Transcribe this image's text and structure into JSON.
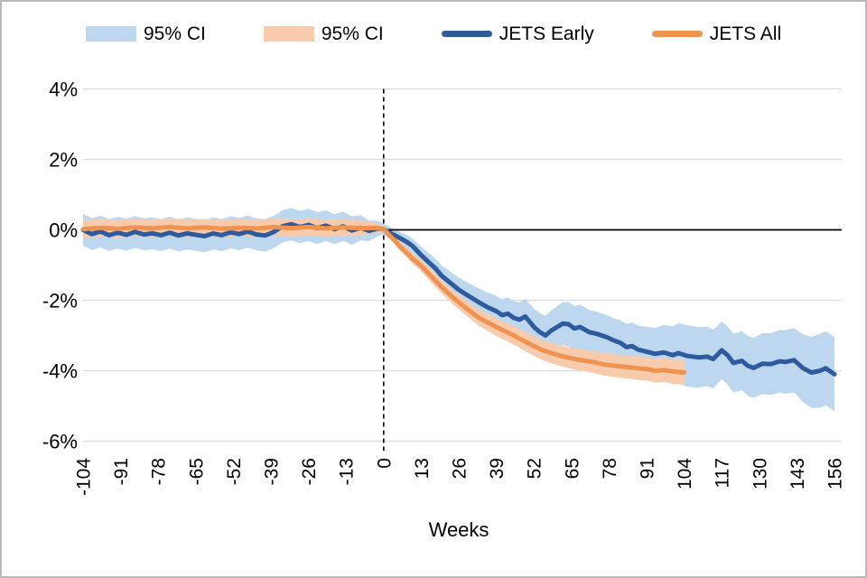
{
  "legend": {
    "items": [
      {
        "label": "95% CI",
        "type": "band",
        "color": "#BDD7EE"
      },
      {
        "label": "95% CI",
        "type": "band",
        "color": "#F8CBAD"
      },
      {
        "label": "JETS Early",
        "type": "line",
        "color": "#2E5B9E"
      },
      {
        "label": "JETS All",
        "type": "line",
        "color": "#EF9450"
      }
    ]
  },
  "chart_data": {
    "type": "line",
    "title": "",
    "xlabel": "Weeks",
    "ylabel": "",
    "xlim": [
      -104,
      156
    ],
    "ylim": [
      -6,
      4
    ],
    "grid": true,
    "x_tick_values": [
      -104,
      -91,
      -78,
      -65,
      -52,
      -39,
      -26,
      -13,
      0,
      13,
      26,
      39,
      52,
      65,
      78,
      91,
      104,
      117,
      130,
      143,
      156
    ],
    "y_tick_values": [
      4,
      2,
      0,
      -2,
      -4,
      -6
    ],
    "y_tick_labels": [
      "4%",
      "2%",
      "0%",
      "-2%",
      "-4%",
      "-6%"
    ],
    "vertical_dashed_line_week": 0,
    "zero_line_from_week": 0,
    "gridline_color": "#D9D9D9",
    "series": [
      {
        "name": "JETS Early",
        "color": "#2E5B9E",
        "ci_name": "95% CI",
        "ci_color": "#BDD7EE",
        "points": [
          [
            -104,
            0.0
          ],
          [
            -101,
            -0.12
          ],
          [
            -98,
            -0.05
          ],
          [
            -95,
            -0.15
          ],
          [
            -92,
            -0.08
          ],
          [
            -89,
            -0.14
          ],
          [
            -86,
            -0.06
          ],
          [
            -83,
            -0.13
          ],
          [
            -80,
            -0.1
          ],
          [
            -77,
            -0.15
          ],
          [
            -74,
            -0.08
          ],
          [
            -71,
            -0.16
          ],
          [
            -68,
            -0.1
          ],
          [
            -65,
            -0.14
          ],
          [
            -62,
            -0.18
          ],
          [
            -59,
            -0.1
          ],
          [
            -56,
            -0.15
          ],
          [
            -53,
            -0.07
          ],
          [
            -50,
            -0.12
          ],
          [
            -47,
            -0.05
          ],
          [
            -44,
            -0.13
          ],
          [
            -41,
            -0.16
          ],
          [
            -38,
            -0.06
          ],
          [
            -35,
            0.1
          ],
          [
            -32,
            0.16
          ],
          [
            -29,
            0.08
          ],
          [
            -26,
            0.14
          ],
          [
            -23,
            0.05
          ],
          [
            -20,
            0.12
          ],
          [
            -17,
            0.02
          ],
          [
            -14,
            0.1
          ],
          [
            -11,
            -0.02
          ],
          [
            -8,
            0.06
          ],
          [
            -5,
            -0.03
          ],
          [
            -2,
            0.04
          ],
          [
            0,
            0.02
          ],
          [
            2,
            -0.08
          ],
          [
            4,
            -0.16
          ],
          [
            6,
            -0.25
          ],
          [
            8,
            -0.34
          ],
          [
            10,
            -0.46
          ],
          [
            13,
            -0.72
          ],
          [
            16,
            -0.95
          ],
          [
            18,
            -1.1
          ],
          [
            20,
            -1.3
          ],
          [
            23,
            -1.5
          ],
          [
            26,
            -1.7
          ],
          [
            29,
            -1.86
          ],
          [
            31,
            -1.96
          ],
          [
            33,
            -2.06
          ],
          [
            36,
            -2.2
          ],
          [
            39,
            -2.31
          ],
          [
            41,
            -2.42
          ],
          [
            43,
            -2.38
          ],
          [
            45,
            -2.5
          ],
          [
            47,
            -2.55
          ],
          [
            49,
            -2.46
          ],
          [
            52,
            -2.76
          ],
          [
            54,
            -2.9
          ],
          [
            56,
            -3.0
          ],
          [
            58,
            -2.86
          ],
          [
            60,
            -2.76
          ],
          [
            62,
            -2.66
          ],
          [
            64,
            -2.68
          ],
          [
            66,
            -2.8
          ],
          [
            68,
            -2.76
          ],
          [
            71,
            -2.9
          ],
          [
            74,
            -2.96
          ],
          [
            77,
            -3.04
          ],
          [
            80,
            -3.15
          ],
          [
            82,
            -3.21
          ],
          [
            84,
            -3.33
          ],
          [
            86,
            -3.3
          ],
          [
            88,
            -3.4
          ],
          [
            91,
            -3.46
          ],
          [
            94,
            -3.52
          ],
          [
            97,
            -3.48
          ],
          [
            100,
            -3.56
          ],
          [
            102,
            -3.5
          ],
          [
            105,
            -3.58
          ],
          [
            109,
            -3.62
          ],
          [
            112,
            -3.6
          ],
          [
            114,
            -3.67
          ],
          [
            117,
            -3.42
          ],
          [
            119,
            -3.56
          ],
          [
            121,
            -3.78
          ],
          [
            124,
            -3.72
          ],
          [
            126,
            -3.86
          ],
          [
            128,
            -3.92
          ],
          [
            131,
            -3.8
          ],
          [
            134,
            -3.81
          ],
          [
            137,
            -3.73
          ],
          [
            139,
            -3.75
          ],
          [
            142,
            -3.7
          ],
          [
            145,
            -3.92
          ],
          [
            148,
            -4.05
          ],
          [
            151,
            -4.0
          ],
          [
            153,
            -3.93
          ],
          [
            156,
            -4.1
          ]
        ],
        "ci_halfwidth": [
          [
            -104,
            0.45
          ],
          [
            -26,
            0.46
          ],
          [
            -10,
            0.4
          ],
          [
            -3,
            0.25
          ],
          [
            0,
            0.16
          ],
          [
            6,
            0.18
          ],
          [
            13,
            0.24
          ],
          [
            26,
            0.34
          ],
          [
            39,
            0.44
          ],
          [
            52,
            0.52
          ],
          [
            65,
            0.64
          ],
          [
            78,
            0.62
          ],
          [
            91,
            0.7
          ],
          [
            104,
            0.88
          ],
          [
            117,
            0.82
          ],
          [
            130,
            0.86
          ],
          [
            143,
            0.92
          ],
          [
            150,
            1.05
          ],
          [
            156,
            1.05
          ]
        ]
      },
      {
        "name": "JETS All",
        "color": "#EF9450",
        "ci_name": "95% CI",
        "ci_color": "#F8CBAD",
        "points": [
          [
            -104,
            0.02
          ],
          [
            -98,
            0.06
          ],
          [
            -92,
            0.03
          ],
          [
            -86,
            0.07
          ],
          [
            -80,
            0.04
          ],
          [
            -74,
            0.08
          ],
          [
            -68,
            0.04
          ],
          [
            -62,
            0.07
          ],
          [
            -56,
            0.03
          ],
          [
            -50,
            0.06
          ],
          [
            -44,
            0.04
          ],
          [
            -38,
            0.08
          ],
          [
            -32,
            0.05
          ],
          [
            -26,
            0.08
          ],
          [
            -20,
            0.04
          ],
          [
            -14,
            0.07
          ],
          [
            -8,
            0.05
          ],
          [
            -2,
            0.06
          ],
          [
            0,
            0.02
          ],
          [
            2,
            -0.15
          ],
          [
            4,
            -0.32
          ],
          [
            6,
            -0.5
          ],
          [
            8,
            -0.65
          ],
          [
            10,
            -0.82
          ],
          [
            13,
            -1.02
          ],
          [
            16,
            -1.28
          ],
          [
            18,
            -1.45
          ],
          [
            20,
            -1.62
          ],
          [
            23,
            -1.85
          ],
          [
            26,
            -2.06
          ],
          [
            29,
            -2.25
          ],
          [
            31,
            -2.38
          ],
          [
            33,
            -2.5
          ],
          [
            36,
            -2.63
          ],
          [
            39,
            -2.76
          ],
          [
            42,
            -2.88
          ],
          [
            45,
            -3.0
          ],
          [
            48,
            -3.13
          ],
          [
            52,
            -3.3
          ],
          [
            55,
            -3.42
          ],
          [
            58,
            -3.5
          ],
          [
            61,
            -3.57
          ],
          [
            64,
            -3.63
          ],
          [
            67,
            -3.68
          ],
          [
            70,
            -3.72
          ],
          [
            73,
            -3.76
          ],
          [
            76,
            -3.82
          ],
          [
            79,
            -3.85
          ],
          [
            82,
            -3.88
          ],
          [
            85,
            -3.9
          ],
          [
            88,
            -3.93
          ],
          [
            91,
            -3.95
          ],
          [
            94,
            -4.0
          ],
          [
            97,
            -3.98
          ],
          [
            100,
            -4.02
          ],
          [
            104,
            -4.05
          ]
        ],
        "ci_halfwidth": [
          [
            -104,
            0.25
          ],
          [
            -10,
            0.24
          ],
          [
            -3,
            0.15
          ],
          [
            0,
            0.08
          ],
          [
            13,
            0.16
          ],
          [
            26,
            0.2
          ],
          [
            39,
            0.25
          ],
          [
            52,
            0.28
          ],
          [
            78,
            0.32
          ],
          [
            104,
            0.35
          ]
        ]
      }
    ]
  }
}
